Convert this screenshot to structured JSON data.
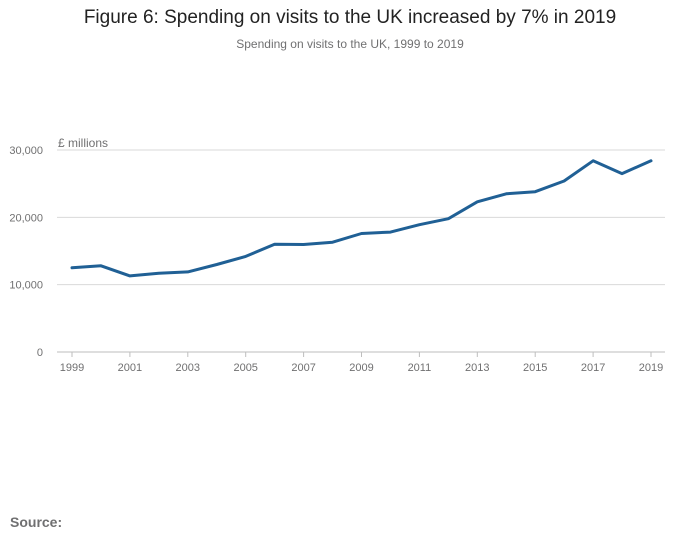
{
  "header": {
    "title": "Figure 6: Spending on visits to the UK increased by 7% in 2019",
    "subtitle": "Spending on visits to the UK, 1999 to 2019"
  },
  "footer": {
    "source_label": "Source:"
  },
  "colors": {
    "line": "#206095",
    "grid": "#d9d9d9",
    "axis": "#bebebe",
    "tick_text": "#707071"
  },
  "chart_data": {
    "type": "line",
    "title": "Figure 6: Spending on visits to the UK increased by 7% in 2019",
    "subtitle": "Spending on visits to the UK, 1999 to 2019",
    "xlabel": "",
    "ylabel": "£ millions",
    "x": [
      1999,
      2000,
      2001,
      2002,
      2003,
      2004,
      2005,
      2006,
      2007,
      2008,
      2009,
      2010,
      2011,
      2012,
      2013,
      2014,
      2015,
      2016,
      2017,
      2018,
      2019
    ],
    "series": [
      {
        "values": [
          12500,
          12800,
          11300,
          11700,
          11900,
          13000,
          14200,
          16000,
          15960,
          16300,
          17600,
          17800,
          18900,
          19800,
          22300,
          23500,
          23800,
          25400,
          28400,
          26500,
          28400
        ]
      }
    ],
    "xticks": [
      "1999",
      "2001",
      "2003",
      "2005",
      "2007",
      "2009",
      "2011",
      "2013",
      "2015",
      "2017",
      "2019"
    ],
    "yticks": [
      "0",
      "10,000",
      "20,000",
      "30,000"
    ],
    "ytick_values": [
      0,
      10000,
      20000,
      30000
    ],
    "xlim": [
      1999,
      2019
    ],
    "ylim": [
      0,
      30000
    ],
    "grid": "horizontal",
    "legend": "none"
  }
}
